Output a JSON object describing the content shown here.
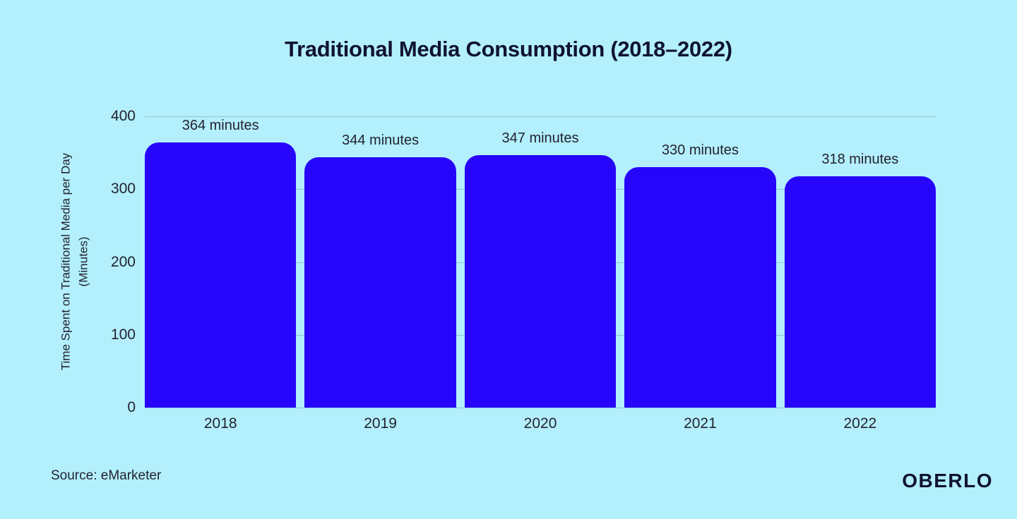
{
  "title": "Traditional Media Consumption (2018–2022)",
  "y_axis": {
    "label_line1": "Time Spent on Traditional Media per Day",
    "label_line2": "(Minutes)"
  },
  "footer": {
    "source": "Source: eMarketer",
    "logo": "OBERLO"
  },
  "colors": {
    "background": "#b3effd",
    "bar": "#2705fb",
    "text_dark": "#101233",
    "text_label": "#23232e",
    "gridline": "rgba(100,125,140,0.38)"
  },
  "chart_data": {
    "type": "bar",
    "title": "Traditional Media Consumption (2018–2022)",
    "categories": [
      "2018",
      "2019",
      "2020",
      "2021",
      "2022"
    ],
    "values": [
      364,
      344,
      347,
      330,
      318
    ],
    "data_labels": [
      "364 minutes",
      "344 minutes",
      "347 minutes",
      "330 minutes",
      "318 minutes"
    ],
    "xlabel": "",
    "ylabel": "Time Spent on Traditional Media per Day (Minutes)",
    "ylim": [
      0,
      400
    ],
    "yticks": [
      0,
      100,
      200,
      300,
      400
    ],
    "grid": true,
    "legend": false
  }
}
